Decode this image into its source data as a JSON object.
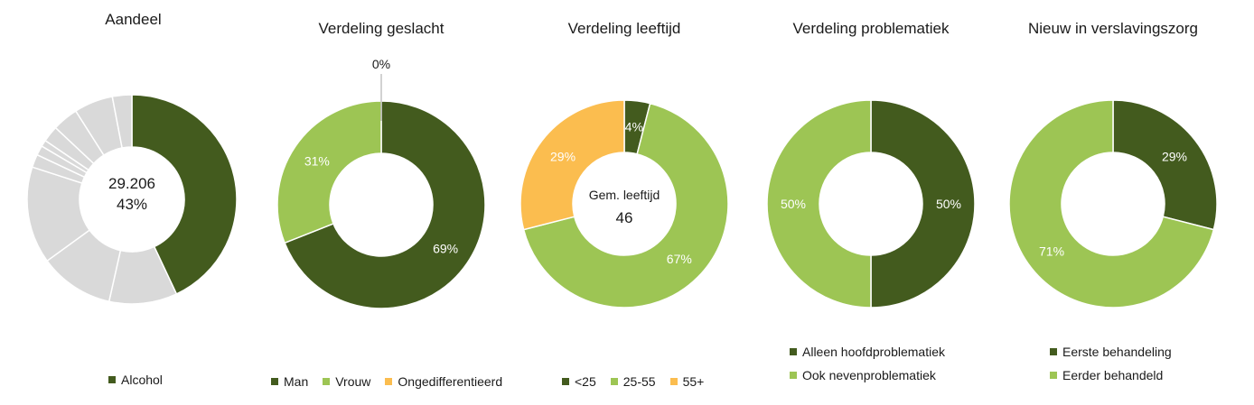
{
  "colors": {
    "dark_green": "#435b1e",
    "light_green": "#9dc554",
    "orange": "#fbbd4f",
    "grey": "#d9d9d9"
  },
  "chart_data": [
    {
      "type": "pie",
      "title": "Aandeel",
      "center_text": [
        "29.206",
        "43%"
      ],
      "slices": [
        {
          "label": "Alcohol",
          "value": 43,
          "color": "#435b1e"
        },
        {
          "label": "",
          "value": 10.5,
          "color": "#d9d9d9"
        },
        {
          "label": "",
          "value": 11.5,
          "color": "#d9d9d9"
        },
        {
          "label": "",
          "value": 15,
          "color": "#d9d9d9"
        },
        {
          "label": "",
          "value": 2,
          "color": "#d9d9d9"
        },
        {
          "label": "",
          "value": 1.5,
          "color": "#d9d9d9"
        },
        {
          "label": "",
          "value": 1,
          "color": "#d9d9d9"
        },
        {
          "label": "",
          "value": 2.5,
          "color": "#d9d9d9"
        },
        {
          "label": "",
          "value": 4,
          "color": "#d9d9d9"
        },
        {
          "label": "",
          "value": 6,
          "color": "#d9d9d9"
        },
        {
          "label": "",
          "value": 3,
          "color": "#d9d9d9"
        }
      ],
      "legend": [
        {
          "label": "Alcohol",
          "color": "#435b1e"
        }
      ]
    },
    {
      "type": "pie",
      "title": "Verdeling geslacht",
      "slices": [
        {
          "label": "Man",
          "value": 69,
          "color": "#435b1e",
          "data_label": "69%"
        },
        {
          "label": "Vrouw",
          "value": 31,
          "color": "#9dc554",
          "data_label": "31%"
        },
        {
          "label": "Ongedifferentieerd",
          "value": 0,
          "color": "#fbbd4f",
          "data_label": "0%"
        }
      ],
      "legend": [
        {
          "label": "Man",
          "color": "#435b1e"
        },
        {
          "label": "Vrouw",
          "color": "#9dc554"
        },
        {
          "label": "Ongedifferentieerd",
          "color": "#fbbd4f"
        }
      ]
    },
    {
      "type": "pie",
      "title": "Verdeling leeftijd",
      "center_text": [
        "Gem. leeftijd",
        "46"
      ],
      "slices": [
        {
          "label": "<25",
          "value": 4,
          "color": "#435b1e",
          "data_label": "4%"
        },
        {
          "label": "25-55",
          "value": 67,
          "color": "#9dc554",
          "data_label": "67%"
        },
        {
          "label": "55+",
          "value": 29,
          "color": "#fbbd4f",
          "data_label": "29%"
        }
      ],
      "legend": [
        {
          "label": "<25",
          "color": "#435b1e"
        },
        {
          "label": "25-55",
          "color": "#9dc554"
        },
        {
          "label": "55+",
          "color": "#fbbd4f"
        }
      ]
    },
    {
      "type": "pie",
      "title": "Verdeling problematiek",
      "slices": [
        {
          "label": "Alleen hoofdproblematiek",
          "value": 50,
          "color": "#435b1e",
          "data_label": "50%"
        },
        {
          "label": "Ook nevenproblematiek",
          "value": 50,
          "color": "#9dc554",
          "data_label": "50%"
        }
      ],
      "legend": [
        {
          "label": "Alleen hoofdproblematiek",
          "color": "#435b1e"
        },
        {
          "label": "Ook nevenproblematiek",
          "color": "#9dc554"
        }
      ]
    },
    {
      "type": "pie",
      "title": "Nieuw in verslavingszorg",
      "slices": [
        {
          "label": "Eerste behandeling",
          "value": 29,
          "color": "#435b1e",
          "data_label": "29%"
        },
        {
          "label": "Eerder behandeld",
          "value": 71,
          "color": "#9dc554",
          "data_label": "71%"
        }
      ],
      "legend": [
        {
          "label": "Eerste behandeling",
          "color": "#435b1e"
        },
        {
          "label": "Eerder behandeld",
          "color": "#9dc554"
        }
      ]
    }
  ]
}
